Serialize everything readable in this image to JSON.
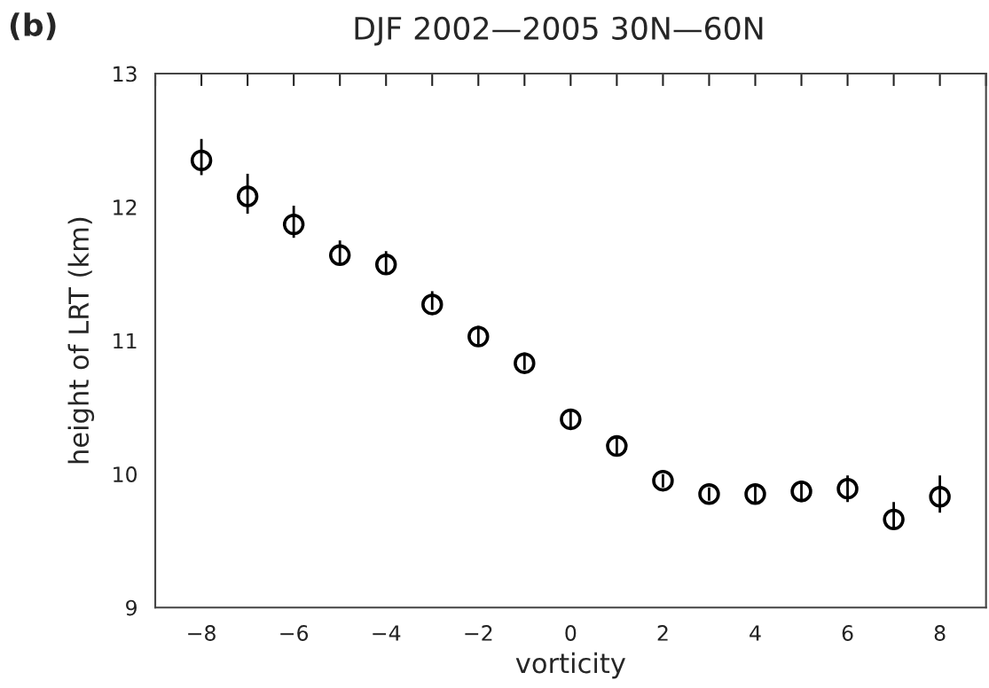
{
  "chart_data": {
    "type": "scatter",
    "title": "DJF 2002—2005 30N—60N",
    "xlabel": "vorticity",
    "ylabel": "height of LRT (km)",
    "annotations": [
      "(b)"
    ],
    "x": [
      -8,
      -7,
      -6,
      -5,
      -4,
      -3,
      -2,
      -1,
      0,
      1,
      2,
      3,
      4,
      5,
      6,
      7,
      8
    ],
    "series": [
      {
        "color": "#000000",
        "values": [
          12.35,
          12.08,
          11.87,
          11.64,
          11.57,
          11.27,
          11.03,
          10.83,
          10.41,
          10.21,
          9.95,
          9.85,
          9.85,
          9.87,
          9.89,
          9.66,
          9.83
        ],
        "errors": [
          [
            12.24,
            12.51
          ],
          [
            11.95,
            12.25
          ],
          [
            11.77,
            12.01
          ],
          [
            11.57,
            11.75
          ],
          [
            11.51,
            11.67
          ],
          [
            11.23,
            11.37
          ],
          [
            10.97,
            11.11
          ],
          [
            10.78,
            10.91
          ],
          [
            10.35,
            10.47
          ],
          [
            10.14,
            10.28
          ],
          [
            9.9,
            10.0
          ],
          [
            9.8,
            9.9
          ],
          [
            9.79,
            9.91
          ],
          [
            9.79,
            9.95
          ],
          [
            9.79,
            9.99
          ],
          [
            9.58,
            9.79
          ],
          [
            9.71,
            9.99
          ]
        ]
      }
    ],
    "marker": "circle",
    "xlim": [
      -9,
      9
    ],
    "xticks": [
      {
        "value": -9,
        "label": null
      },
      -8,
      {
        "value": -7,
        "label": null
      },
      -6,
      {
        "value": -5,
        "label": null
      },
      -4,
      {
        "value": -3,
        "label": null
      },
      -2,
      {
        "value": -1,
        "label": null
      },
      0,
      {
        "value": 1,
        "label": null
      },
      2,
      {
        "value": 3,
        "label": null
      },
      4,
      {
        "value": 5,
        "label": null
      },
      6,
      {
        "value": 7,
        "label": null
      },
      8,
      {
        "value": 9,
        "label": null
      }
    ],
    "ylim": [
      9,
      13
    ],
    "yticks": [
      9,
      10,
      11,
      12,
      13
    ],
    "grid": false,
    "legend": false
  }
}
